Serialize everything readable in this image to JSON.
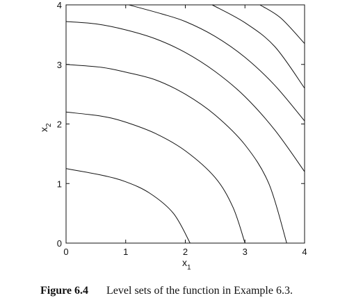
{
  "chart_data": {
    "type": "line",
    "title": "",
    "xlabel": "x",
    "xlabel_sub": "1",
    "ylabel": "x",
    "ylabel_sub": "2",
    "xlim": [
      0,
      4
    ],
    "ylim": [
      0,
      4
    ],
    "xticks": [
      0,
      1,
      2,
      3,
      4
    ],
    "yticks": [
      0,
      1,
      2,
      3,
      4
    ],
    "grid": false,
    "legend": "none",
    "line_color": "#111111",
    "series": [
      {
        "points": [
          [
            0,
            1.25
          ],
          [
            0.6,
            1.14
          ],
          [
            1.0,
            1.03
          ],
          [
            1.4,
            0.84
          ],
          [
            1.8,
            0.5
          ],
          [
            2.08,
            0
          ]
        ]
      },
      {
        "points": [
          [
            0,
            2.2
          ],
          [
            0.6,
            2.13
          ],
          [
            1.0,
            2.03
          ],
          [
            1.5,
            1.84
          ],
          [
            2.0,
            1.55
          ],
          [
            2.5,
            1.1
          ],
          [
            2.8,
            0.6
          ],
          [
            3.0,
            0
          ]
        ]
      },
      {
        "points": [
          [
            0,
            3.0
          ],
          [
            0.6,
            2.95
          ],
          [
            1.0,
            2.87
          ],
          [
            1.5,
            2.74
          ],
          [
            2.0,
            2.5
          ],
          [
            2.5,
            2.15
          ],
          [
            3.0,
            1.65
          ],
          [
            3.4,
            1.0
          ],
          [
            3.7,
            0
          ]
        ]
      },
      {
        "points": [
          [
            0,
            3.72
          ],
          [
            0.5,
            3.68
          ],
          [
            1.0,
            3.58
          ],
          [
            1.5,
            3.43
          ],
          [
            2.0,
            3.2
          ],
          [
            2.5,
            2.88
          ],
          [
            3.0,
            2.46
          ],
          [
            3.5,
            1.9
          ],
          [
            4.0,
            1.2
          ]
        ]
      },
      {
        "points": [
          [
            1.05,
            4.0
          ],
          [
            1.6,
            3.85
          ],
          [
            2.0,
            3.72
          ],
          [
            2.5,
            3.47
          ],
          [
            3.0,
            3.12
          ],
          [
            3.5,
            2.65
          ],
          [
            4.0,
            2.05
          ]
        ]
      },
      {
        "points": [
          [
            2.45,
            4.0
          ],
          [
            3.0,
            3.7
          ],
          [
            3.5,
            3.3
          ],
          [
            4.0,
            2.6
          ]
        ]
      },
      {
        "points": [
          [
            3.25,
            4.0
          ],
          [
            3.6,
            3.78
          ],
          [
            4.0,
            3.35
          ]
        ]
      }
    ]
  },
  "caption": {
    "figure_number": "Figure 6.4",
    "text": "Level sets of the function in Example 6.3."
  }
}
